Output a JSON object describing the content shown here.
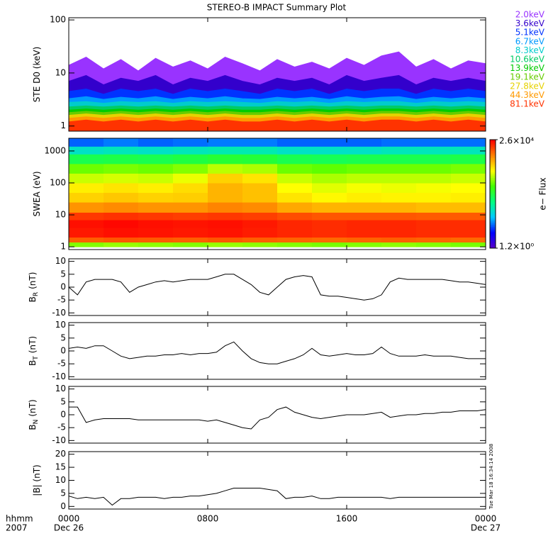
{
  "title": "STEREO-B IMPACT Summary Plot",
  "timestamp": "Tue Mar 18 16:34:14 2008",
  "x_captions": [
    "hhmm",
    "2007"
  ],
  "chart_data": [
    {
      "type": "area",
      "ylabel": "STE D0 (keV)",
      "log_y": true,
      "ylim": [
        0.8,
        110
      ],
      "yticks": [
        1,
        10,
        100
      ],
      "xlim": [
        0,
        24
      ],
      "x": [
        0,
        1,
        2,
        3,
        4,
        5,
        6,
        7,
        8,
        9,
        10,
        11,
        12,
        13,
        14,
        15,
        16,
        17,
        18,
        19,
        20,
        21,
        22,
        23,
        24
      ],
      "series": [
        {
          "name": "2.0keV",
          "color": "#9933ff",
          "values": [
            14,
            20,
            12,
            18,
            11,
            19,
            13,
            17,
            12,
            20,
            15,
            11,
            18,
            13,
            16,
            12,
            19,
            14,
            21,
            25,
            13,
            18,
            12,
            17,
            15
          ]
        },
        {
          "name": "3.6keV",
          "color": "#3300cc",
          "values": [
            7,
            9,
            6,
            8,
            7,
            9,
            6,
            8,
            7,
            9,
            7,
            6,
            8,
            7,
            8,
            6,
            9,
            7,
            8,
            9,
            6,
            8,
            7,
            8,
            7
          ]
        },
        {
          "name": "5.1keV",
          "color": "#0033ff",
          "values": [
            4.5,
            5,
            4,
            5,
            4.5,
            5,
            4,
            5,
            4.5,
            5,
            4.5,
            4,
            5,
            4.5,
            5,
            4,
            5,
            4.5,
            5,
            5,
            4,
            5,
            4.5,
            5,
            4.5
          ]
        },
        {
          "name": "6.7keV",
          "color": "#0099ff",
          "values": [
            3.3,
            3.6,
            3.2,
            3.5,
            3.3,
            3.6,
            3.2,
            3.5,
            3.3,
            3.6,
            3.3,
            3.2,
            3.5,
            3.3,
            3.5,
            3.2,
            3.6,
            3.3,
            3.5,
            3.6,
            3.2,
            3.5,
            3.3,
            3.5,
            3.3
          ]
        },
        {
          "name": "8.3keV",
          "color": "#00cccc",
          "values": [
            2.8,
            2.9,
            2.7,
            2.9,
            2.8,
            2.9,
            2.7,
            2.9,
            2.8,
            2.9,
            2.8,
            2.7,
            2.9,
            2.8,
            2.9,
            2.7,
            2.9,
            2.8,
            2.9,
            2.9,
            2.7,
            2.9,
            2.8,
            2.9,
            2.8
          ]
        },
        {
          "name": "10.6keV",
          "color": "#00cc66",
          "values": [
            2.3,
            2.4,
            2.3,
            2.4,
            2.3,
            2.4,
            2.3,
            2.4,
            2.3,
            2.4,
            2.3,
            2.3,
            2.4,
            2.3,
            2.4,
            2.3,
            2.4,
            2.3,
            2.4,
            2.4,
            2.3,
            2.4,
            2.3,
            2.4,
            2.3
          ]
        },
        {
          "name": "13.9keV",
          "color": "#00cc00",
          "values": [
            2.0,
            2.1,
            2.0,
            2.1,
            2.0,
            2.1,
            2.0,
            2.1,
            2.0,
            2.1,
            2.0,
            2.0,
            2.1,
            2.0,
            2.1,
            2.0,
            2.1,
            2.0,
            2.1,
            2.1,
            2.0,
            2.1,
            2.0,
            2.1,
            2.0
          ]
        },
        {
          "name": "19.1keV",
          "color": "#66cc00",
          "values": [
            1.8,
            1.9,
            1.8,
            1.9,
            1.8,
            1.9,
            1.8,
            1.9,
            1.8,
            1.9,
            1.8,
            1.8,
            1.9,
            1.8,
            1.9,
            1.8,
            1.9,
            1.8,
            1.9,
            1.9,
            1.8,
            1.9,
            1.8,
            1.9,
            1.8
          ]
        },
        {
          "name": "27.8keV",
          "color": "#e6d200",
          "values": [
            1.6,
            1.7,
            1.6,
            1.7,
            1.6,
            1.7,
            1.6,
            1.7,
            1.6,
            1.7,
            1.6,
            1.6,
            1.7,
            1.6,
            1.7,
            1.6,
            1.7,
            1.6,
            1.7,
            1.7,
            1.6,
            1.7,
            1.6,
            1.7,
            1.6
          ]
        },
        {
          "name": "44.3keV",
          "color": "#ff9900",
          "values": [
            1.4,
            1.5,
            1.4,
            1.5,
            1.4,
            1.5,
            1.4,
            1.5,
            1.4,
            1.5,
            1.4,
            1.4,
            1.5,
            1.4,
            1.5,
            1.4,
            1.5,
            1.4,
            1.5,
            1.5,
            1.4,
            1.5,
            1.4,
            1.5,
            1.4
          ]
        },
        {
          "name": "81.1keV",
          "color": "#ff3300",
          "values": [
            1.2,
            1.3,
            1.2,
            1.3,
            1.2,
            1.3,
            1.2,
            1.3,
            1.2,
            1.3,
            1.2,
            1.2,
            1.3,
            1.2,
            1.3,
            1.2,
            1.3,
            1.2,
            1.3,
            1.3,
            1.2,
            1.3,
            1.2,
            1.3,
            1.2
          ]
        }
      ]
    },
    {
      "type": "heatmap",
      "ylabel": "SWEA (eV)",
      "log_y": true,
      "ylim": [
        0.82,
        2500
      ],
      "yticks": [
        1,
        10,
        100,
        1000
      ],
      "xlim": [
        0,
        24
      ],
      "x_bins": [
        0,
        2,
        4,
        6,
        8,
        10,
        12,
        14,
        16,
        18,
        20,
        22,
        24
      ],
      "y_bins": [
        1,
        1.4,
        2,
        4,
        7,
        12,
        25,
        50,
        100,
        200,
        400,
        800,
        1400,
        2500
      ],
      "z": [
        [
          600,
          700,
          650,
          600,
          700,
          650,
          600,
          550,
          600,
          650,
          600,
          550
        ],
        [
          9000,
          10000,
          9500,
          9000,
          10000,
          9000,
          8500,
          8000,
          8500,
          9000,
          8500,
          8000
        ],
        [
          20000,
          22000,
          21000,
          20000,
          21000,
          19000,
          17000,
          16000,
          17000,
          17000,
          16000,
          16000
        ],
        [
          22000,
          24000,
          22000,
          21000,
          22000,
          20000,
          17000,
          16000,
          17000,
          17000,
          16000,
          16000
        ],
        [
          14000,
          15000,
          14000,
          13000,
          14000,
          13000,
          11000,
          10000,
          10000,
          10000,
          9500,
          9500
        ],
        [
          5000,
          5500,
          5000,
          5000,
          6000,
          5500,
          4000,
          3500,
          3500,
          3500,
          3200,
          3200
        ],
        [
          2500,
          2800,
          2500,
          2600,
          3500,
          3000,
          2000,
          1600,
          1800,
          1700,
          1700,
          1800
        ],
        [
          1800,
          2000,
          1800,
          2200,
          3500,
          3000,
          1500,
          1200,
          1400,
          1300,
          1400,
          1500
        ],
        [
          1000,
          1100,
          1000,
          1300,
          2500,
          2000,
          1000,
          800,
          900,
          900,
          900,
          1000
        ],
        [
          500,
          550,
          500,
          600,
          900,
          800,
          500,
          450,
          500,
          500,
          500,
          550
        ],
        [
          150,
          160,
          150,
          170,
          200,
          190,
          150,
          140,
          150,
          150,
          150,
          160
        ],
        [
          40,
          45,
          40,
          45,
          50,
          50,
          40,
          40,
          40,
          45,
          45,
          45
        ],
        [
          10,
          12,
          10,
          11,
          12,
          12,
          10,
          10,
          10,
          11,
          11,
          11
        ]
      ],
      "colormap": [
        "#5a00c8",
        "#0000ff",
        "#00c8ff",
        "#00ff80",
        "#40ff00",
        "#ffff00",
        "#ff8000",
        "#ff0000"
      ],
      "colorbar": {
        "label": "e− Flux",
        "clim": [
          1.2,
          26000
        ],
        "ticks": [
          {
            "value": 26000,
            "label": "2.6×10⁴"
          },
          {
            "value": 1.2,
            "label": "1.2×10⁰"
          }
        ]
      }
    },
    {
      "type": "line",
      "ylabel": "B",
      "ylabel_sub": "R",
      "ylabel_unit": "(nT)",
      "ylim": [
        -11,
        11
      ],
      "yticks": [
        -10,
        -5,
        0,
        5,
        10
      ],
      "xlim": [
        0,
        24
      ],
      "color": "#000000",
      "x": [
        0,
        0.5,
        1,
        1.5,
        2,
        2.5,
        3,
        3.5,
        4,
        4.5,
        5,
        5.5,
        6,
        6.5,
        7,
        7.5,
        8,
        8.5,
        9,
        9.5,
        10,
        10.5,
        11,
        11.5,
        12,
        12.5,
        13,
        13.5,
        14,
        14.5,
        15,
        15.5,
        16,
        16.5,
        17,
        17.5,
        18,
        18.5,
        19,
        19.5,
        20,
        20.5,
        21,
        21.5,
        22,
        22.5,
        23,
        23.5,
        24
      ],
      "values": [
        0,
        -3,
        2,
        3,
        3,
        3,
        2,
        -2,
        0,
        1,
        2,
        2.5,
        2,
        2.5,
        3,
        3,
        3,
        4,
        5,
        5,
        3,
        1,
        -2,
        -3,
        0,
        3,
        4,
        4.5,
        4,
        -3,
        -3.5,
        -3.5,
        -4,
        -4.5,
        -5,
        -4.5,
        -3,
        2,
        3.5,
        3,
        3,
        3,
        3,
        3,
        2.5,
        2,
        2,
        1.5,
        1
      ]
    },
    {
      "type": "line",
      "ylabel": "B",
      "ylabel_sub": "T",
      "ylabel_unit": "(nT)",
      "ylim": [
        -11,
        11
      ],
      "yticks": [
        -10,
        -5,
        0,
        5,
        10
      ],
      "xlim": [
        0,
        24
      ],
      "color": "#000000",
      "x": [
        0,
        0.5,
        1,
        1.5,
        2,
        2.5,
        3,
        3.5,
        4,
        4.5,
        5,
        5.5,
        6,
        6.5,
        7,
        7.5,
        8,
        8.5,
        9,
        9.5,
        10,
        10.5,
        11,
        11.5,
        12,
        12.5,
        13,
        13.5,
        14,
        14.5,
        15,
        15.5,
        16,
        16.5,
        17,
        17.5,
        18,
        18.5,
        19,
        19.5,
        20,
        20.5,
        21,
        21.5,
        22,
        22.5,
        23,
        23.5,
        24
      ],
      "values": [
        1,
        1.5,
        1,
        2,
        2,
        0,
        -2,
        -3,
        -2.5,
        -2,
        -2,
        -1.5,
        -1.5,
        -1,
        -1.5,
        -1,
        -1,
        -0.5,
        2,
        3.5,
        0,
        -3,
        -4.5,
        -5,
        -5,
        -4,
        -3,
        -1.5,
        1,
        -1.5,
        -2,
        -1.5,
        -1,
        -1.5,
        -1.5,
        -1,
        1.5,
        -1,
        -2,
        -2,
        -2,
        -1.5,
        -2,
        -2,
        -2,
        -2.5,
        -3,
        -3,
        -3
      ]
    },
    {
      "type": "line",
      "ylabel": "B",
      "ylabel_sub": "N",
      "ylabel_unit": "(nT)",
      "ylim": [
        -11,
        11
      ],
      "yticks": [
        -10,
        -5,
        0,
        5,
        10
      ],
      "xlim": [
        0,
        24
      ],
      "color": "#000000",
      "x": [
        0,
        0.5,
        1,
        1.5,
        2,
        2.5,
        3,
        3.5,
        4,
        4.5,
        5,
        5.5,
        6,
        6.5,
        7,
        7.5,
        8,
        8.5,
        9,
        9.5,
        10,
        10.5,
        11,
        11.5,
        12,
        12.5,
        13,
        13.5,
        14,
        14.5,
        15,
        15.5,
        16,
        16.5,
        17,
        17.5,
        18,
        18.5,
        19,
        19.5,
        20,
        20.5,
        21,
        21.5,
        22,
        22.5,
        23,
        23.5,
        24
      ],
      "values": [
        3,
        3,
        -3,
        -2,
        -1.5,
        -1.5,
        -1.5,
        -1.5,
        -2,
        -2,
        -2,
        -2,
        -2,
        -2,
        -2,
        -2,
        -2.5,
        -2,
        -3,
        -4,
        -5,
        -5.5,
        -2,
        -1,
        2,
        3,
        1,
        0,
        -1,
        -1.5,
        -1,
        -0.5,
        0,
        0,
        0,
        0.5,
        1,
        -1,
        -0.5,
        0,
        0,
        0.5,
        0.5,
        1,
        1,
        1.5,
        1.5,
        1.5,
        2
      ]
    },
    {
      "type": "line",
      "ylabel": "|B| (nT)",
      "ylim": [
        -1,
        21
      ],
      "yticks": [
        0,
        5,
        10,
        15,
        20
      ],
      "xlim": [
        0,
        24
      ],
      "color": "#000000",
      "x": [
        0,
        0.5,
        1,
        1.5,
        2,
        2.5,
        3,
        3.5,
        4,
        4.5,
        5,
        5.5,
        6,
        6.5,
        7,
        7.5,
        8,
        8.5,
        9,
        9.5,
        10,
        10.5,
        11,
        11.5,
        12,
        12.5,
        13,
        13.5,
        14,
        14.5,
        15,
        15.5,
        16,
        16.5,
        17,
        17.5,
        18,
        18.5,
        19,
        19.5,
        20,
        20.5,
        21,
        21.5,
        22,
        22.5,
        23,
        23.5,
        24
      ],
      "values": [
        4,
        3,
        3.5,
        3,
        3.5,
        0.5,
        3,
        3,
        3.5,
        3.5,
        3.5,
        3,
        3.5,
        3.5,
        4,
        4,
        4.5,
        5,
        6,
        7,
        7,
        7,
        7,
        6.5,
        6,
        3,
        3.5,
        3.5,
        4,
        3,
        3,
        3.5,
        3.5,
        3.5,
        3.5,
        3.5,
        3.5,
        3,
        3.5,
        3.5,
        3.5,
        3.5,
        3.5,
        3.5,
        3.5,
        3.5,
        3.5,
        3.5,
        3.5
      ],
      "xticks": [
        {
          "value": 0,
          "label": "0000"
        },
        {
          "value": 8,
          "label": "0800"
        },
        {
          "value": 16,
          "label": "1600"
        },
        {
          "value": 24,
          "label": "0000"
        }
      ],
      "x_date_labels": [
        {
          "value": 0,
          "label": "Dec 26"
        },
        {
          "value": 24,
          "label": "Dec 27"
        }
      ]
    }
  ]
}
